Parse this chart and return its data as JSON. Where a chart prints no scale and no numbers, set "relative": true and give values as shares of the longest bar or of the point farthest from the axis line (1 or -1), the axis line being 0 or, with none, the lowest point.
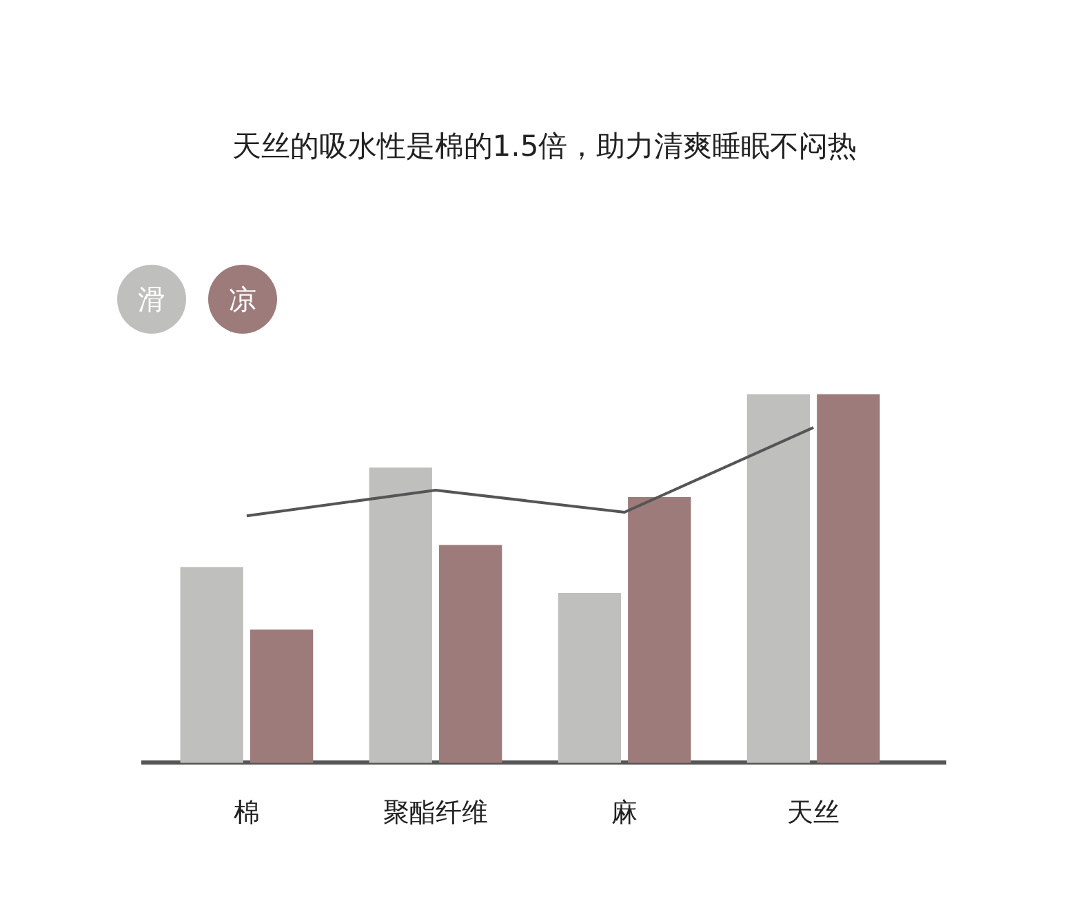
{
  "chart_data": {
    "type": "bar",
    "title": "天丝的吸水性是棉的1.5倍，助力清爽睡眠不闷热",
    "relative": true,
    "legend": "top left",
    "grid": false,
    "marker": "none",
    "categories": [
      "棉",
      "聚酯纤维",
      "麻",
      "天丝"
    ],
    "series": [
      {
        "name": "滑",
        "color": "#bfbfbd",
        "values": [
          0.53,
          0.8,
          0.46,
          1.0
        ]
      },
      {
        "name": "凉",
        "color": "#9d7b7b",
        "values": [
          0.36,
          0.59,
          0.72,
          1.0
        ]
      },
      {
        "type": "line",
        "color": "#555555",
        "values": [
          0.67,
          0.74,
          0.68,
          0.91
        ]
      }
    ]
  }
}
